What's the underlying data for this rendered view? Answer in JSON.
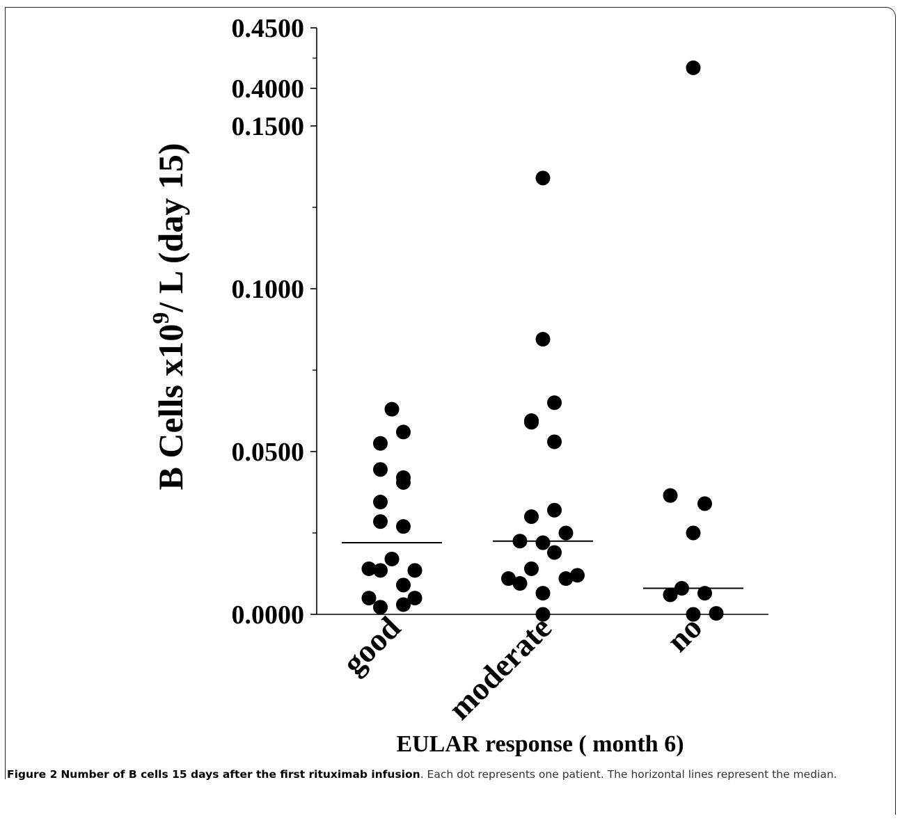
{
  "caption": {
    "figure_label": "Figure 2",
    "title": "Number of B cells 15 days after the first rituximab infusion",
    "text": ". Each dot represents one patient. The horizontal lines represent the median."
  },
  "chart_data": {
    "type": "scatter",
    "ylabel": "B Cells x10",
    "ylabel_sup": "9",
    "ylabel_tail": "/ L (day 15)",
    "xlabel": "EULAR response ( month 6)",
    "categories": [
      "good",
      "moderate",
      "no"
    ],
    "y_axis": {
      "break": true,
      "lower_segment": [
        0,
        0.15
      ],
      "upper_segment": [
        0.4,
        0.45
      ],
      "ticks": [
        0.0,
        0.05,
        0.1,
        0.15,
        0.4,
        0.45
      ],
      "minor_ticks": [
        0.025,
        0.075,
        0.125,
        0.425
      ],
      "tick_labels": [
        "0.0000",
        "0.0500",
        "0.1000",
        "0.1500",
        "0.4000",
        "0.4500"
      ]
    },
    "series": [
      {
        "category": "good",
        "median": 0.022,
        "points": [
          {
            "offset": 0,
            "value": 0.063
          },
          {
            "offset": -1,
            "value": 0.0525
          },
          {
            "offset": 1,
            "value": 0.056
          },
          {
            "offset": -1,
            "value": 0.0445
          },
          {
            "offset": 1,
            "value": 0.042
          },
          {
            "offset": 1,
            "value": 0.0405
          },
          {
            "offset": -1,
            "value": 0.0345
          },
          {
            "offset": -1,
            "value": 0.0285
          },
          {
            "offset": 1,
            "value": 0.027
          },
          {
            "offset": 0,
            "value": 0.017
          },
          {
            "offset": -2,
            "value": 0.014
          },
          {
            "offset": -1,
            "value": 0.0135
          },
          {
            "offset": 2,
            "value": 0.0135
          },
          {
            "offset": 1,
            "value": 0.009
          },
          {
            "offset": -2,
            "value": 0.005
          },
          {
            "offset": 2,
            "value": 0.005
          },
          {
            "offset": 1,
            "value": 0.003
          },
          {
            "offset": -1,
            "value": 0.0022
          }
        ]
      },
      {
        "category": "moderate",
        "median": 0.0225,
        "points": [
          {
            "offset": 0,
            "value": 0.134
          },
          {
            "offset": 0,
            "value": 0.0845
          },
          {
            "offset": 1,
            "value": 0.065
          },
          {
            "offset": -1,
            "value": 0.0595
          },
          {
            "offset": -1,
            "value": 0.059
          },
          {
            "offset": 1,
            "value": 0.053
          },
          {
            "offset": 1,
            "value": 0.032
          },
          {
            "offset": -1,
            "value": 0.03
          },
          {
            "offset": 2,
            "value": 0.025
          },
          {
            "offset": -2,
            "value": 0.0225
          },
          {
            "offset": 0,
            "value": 0.022
          },
          {
            "offset": 1,
            "value": 0.019
          },
          {
            "offset": -1,
            "value": 0.014
          },
          {
            "offset": 3,
            "value": 0.012
          },
          {
            "offset": -3,
            "value": 0.011
          },
          {
            "offset": 2,
            "value": 0.011
          },
          {
            "offset": -2,
            "value": 0.0095
          },
          {
            "offset": 0,
            "value": 0.0065
          },
          {
            "offset": 0,
            "value": 0.0
          }
        ]
      },
      {
        "category": "no",
        "median": 0.008,
        "points": [
          {
            "offset": 0,
            "value": 0.417
          },
          {
            "offset": -2,
            "value": 0.0365
          },
          {
            "offset": 1,
            "value": 0.034
          },
          {
            "offset": 0,
            "value": 0.025
          },
          {
            "offset": -1,
            "value": 0.008
          },
          {
            "offset": -2,
            "value": 0.006
          },
          {
            "offset": 1,
            "value": 0.0065
          },
          {
            "offset": 0,
            "value": 0.0
          },
          {
            "offset": 2,
            "value": 0.0003
          }
        ]
      }
    ]
  }
}
